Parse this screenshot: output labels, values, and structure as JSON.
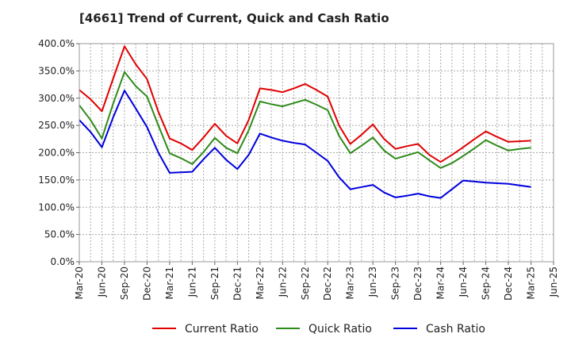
{
  "chart_data": {
    "type": "line",
    "title": "[4661]  Trend of Current, Quick and Cash Ratio",
    "xlabel": "",
    "ylabel": "",
    "ylim": [
      0,
      400
    ],
    "y_ticks": [
      "0.0%",
      "50.0%",
      "100.0%",
      "150.0%",
      "200.0%",
      "250.0%",
      "300.0%",
      "350.0%",
      "400.0%"
    ],
    "x_tick_labels": [
      "Mar-20",
      "Jun-20",
      "Sep-20",
      "Dec-20",
      "Mar-21",
      "Jun-21",
      "Sep-21",
      "Dec-21",
      "Mar-22",
      "Jun-22",
      "Sep-22",
      "Dec-22",
      "Mar-23",
      "Jun-23",
      "Sep-23",
      "Dec-23",
      "Mar-24",
      "Jun-24",
      "Sep-24",
      "Dec-24",
      "Mar-25",
      "Jun-25"
    ],
    "grid": true,
    "legend_position": "bottom",
    "series": [
      {
        "name": "Current Ratio",
        "color": "#e00000",
        "points": [
          [
            0,
            315
          ],
          [
            1,
            298
          ],
          [
            2,
            276
          ],
          [
            3,
            336
          ],
          [
            4,
            395
          ],
          [
            5,
            362
          ],
          [
            6,
            335
          ],
          [
            7,
            275
          ],
          [
            8,
            226
          ],
          [
            9,
            217
          ],
          [
            10,
            205
          ],
          [
            11,
            228
          ],
          [
            12,
            253
          ],
          [
            13,
            231
          ],
          [
            14,
            217
          ],
          [
            15,
            260
          ],
          [
            16,
            318
          ],
          [
            17,
            315
          ],
          [
            18,
            311
          ],
          [
            19,
            318
          ],
          [
            20,
            326
          ],
          [
            21,
            315
          ],
          [
            22,
            303
          ],
          [
            23,
            250
          ],
          [
            24,
            216
          ],
          [
            25,
            233
          ],
          [
            26,
            252
          ],
          [
            27,
            225
          ],
          [
            28,
            207
          ],
          [
            29,
            212
          ],
          [
            30,
            216
          ],
          [
            31,
            196
          ],
          [
            32,
            183
          ],
          [
            33,
            196
          ],
          [
            34,
            210
          ],
          [
            35,
            225
          ],
          [
            36,
            239
          ],
          [
            37,
            229
          ],
          [
            38,
            220
          ],
          [
            39,
            221
          ],
          [
            40,
            222
          ]
        ]
      },
      {
        "name": "Quick Ratio",
        "color": "#2e8b1a",
        "points": [
          [
            0,
            287
          ],
          [
            1,
            260
          ],
          [
            2,
            226
          ],
          [
            3,
            290
          ],
          [
            4,
            348
          ],
          [
            5,
            322
          ],
          [
            6,
            303
          ],
          [
            7,
            250
          ],
          [
            8,
            199
          ],
          [
            9,
            190
          ],
          [
            10,
            179
          ],
          [
            11,
            201
          ],
          [
            12,
            227
          ],
          [
            13,
            209
          ],
          [
            14,
            199
          ],
          [
            15,
            241
          ],
          [
            16,
            294
          ],
          [
            17,
            289
          ],
          [
            18,
            285
          ],
          [
            19,
            291
          ],
          [
            20,
            297
          ],
          [
            21,
            288
          ],
          [
            22,
            278
          ],
          [
            23,
            231
          ],
          [
            24,
            199
          ],
          [
            25,
            213
          ],
          [
            26,
            228
          ],
          [
            27,
            204
          ],
          [
            28,
            189
          ],
          [
            29,
            195
          ],
          [
            30,
            201
          ],
          [
            31,
            186
          ],
          [
            32,
            172
          ],
          [
            33,
            181
          ],
          [
            34,
            194
          ],
          [
            35,
            208
          ],
          [
            36,
            223
          ],
          [
            37,
            213
          ],
          [
            38,
            204
          ],
          [
            39,
            207
          ],
          [
            40,
            209
          ]
        ]
      },
      {
        "name": "Cash Ratio",
        "color": "#0000dd",
        "points": [
          [
            0,
            260
          ],
          [
            1,
            238
          ],
          [
            2,
            210
          ],
          [
            3,
            265
          ],
          [
            4,
            314
          ],
          [
            5,
            281
          ],
          [
            6,
            247
          ],
          [
            7,
            200
          ],
          [
            8,
            163
          ],
          [
            9,
            164
          ],
          [
            10,
            165
          ],
          [
            11,
            188
          ],
          [
            12,
            209
          ],
          [
            13,
            187
          ],
          [
            14,
            170
          ],
          [
            15,
            196
          ],
          [
            16,
            235
          ],
          [
            17,
            228
          ],
          [
            18,
            222
          ],
          [
            19,
            218
          ],
          [
            20,
            215
          ],
          [
            21,
            200
          ],
          [
            22,
            185
          ],
          [
            23,
            155
          ],
          [
            24,
            133
          ],
          [
            25,
            137
          ],
          [
            26,
            141
          ],
          [
            27,
            127
          ],
          [
            28,
            118
          ],
          [
            29,
            121
          ],
          [
            30,
            125
          ],
          [
            31,
            120
          ],
          [
            32,
            117
          ],
          [
            33,
            133
          ],
          [
            34,
            149
          ],
          [
            35,
            147
          ],
          [
            36,
            145
          ],
          [
            37,
            144
          ],
          [
            38,
            143
          ],
          [
            39,
            140
          ],
          [
            40,
            137
          ]
        ]
      }
    ]
  }
}
